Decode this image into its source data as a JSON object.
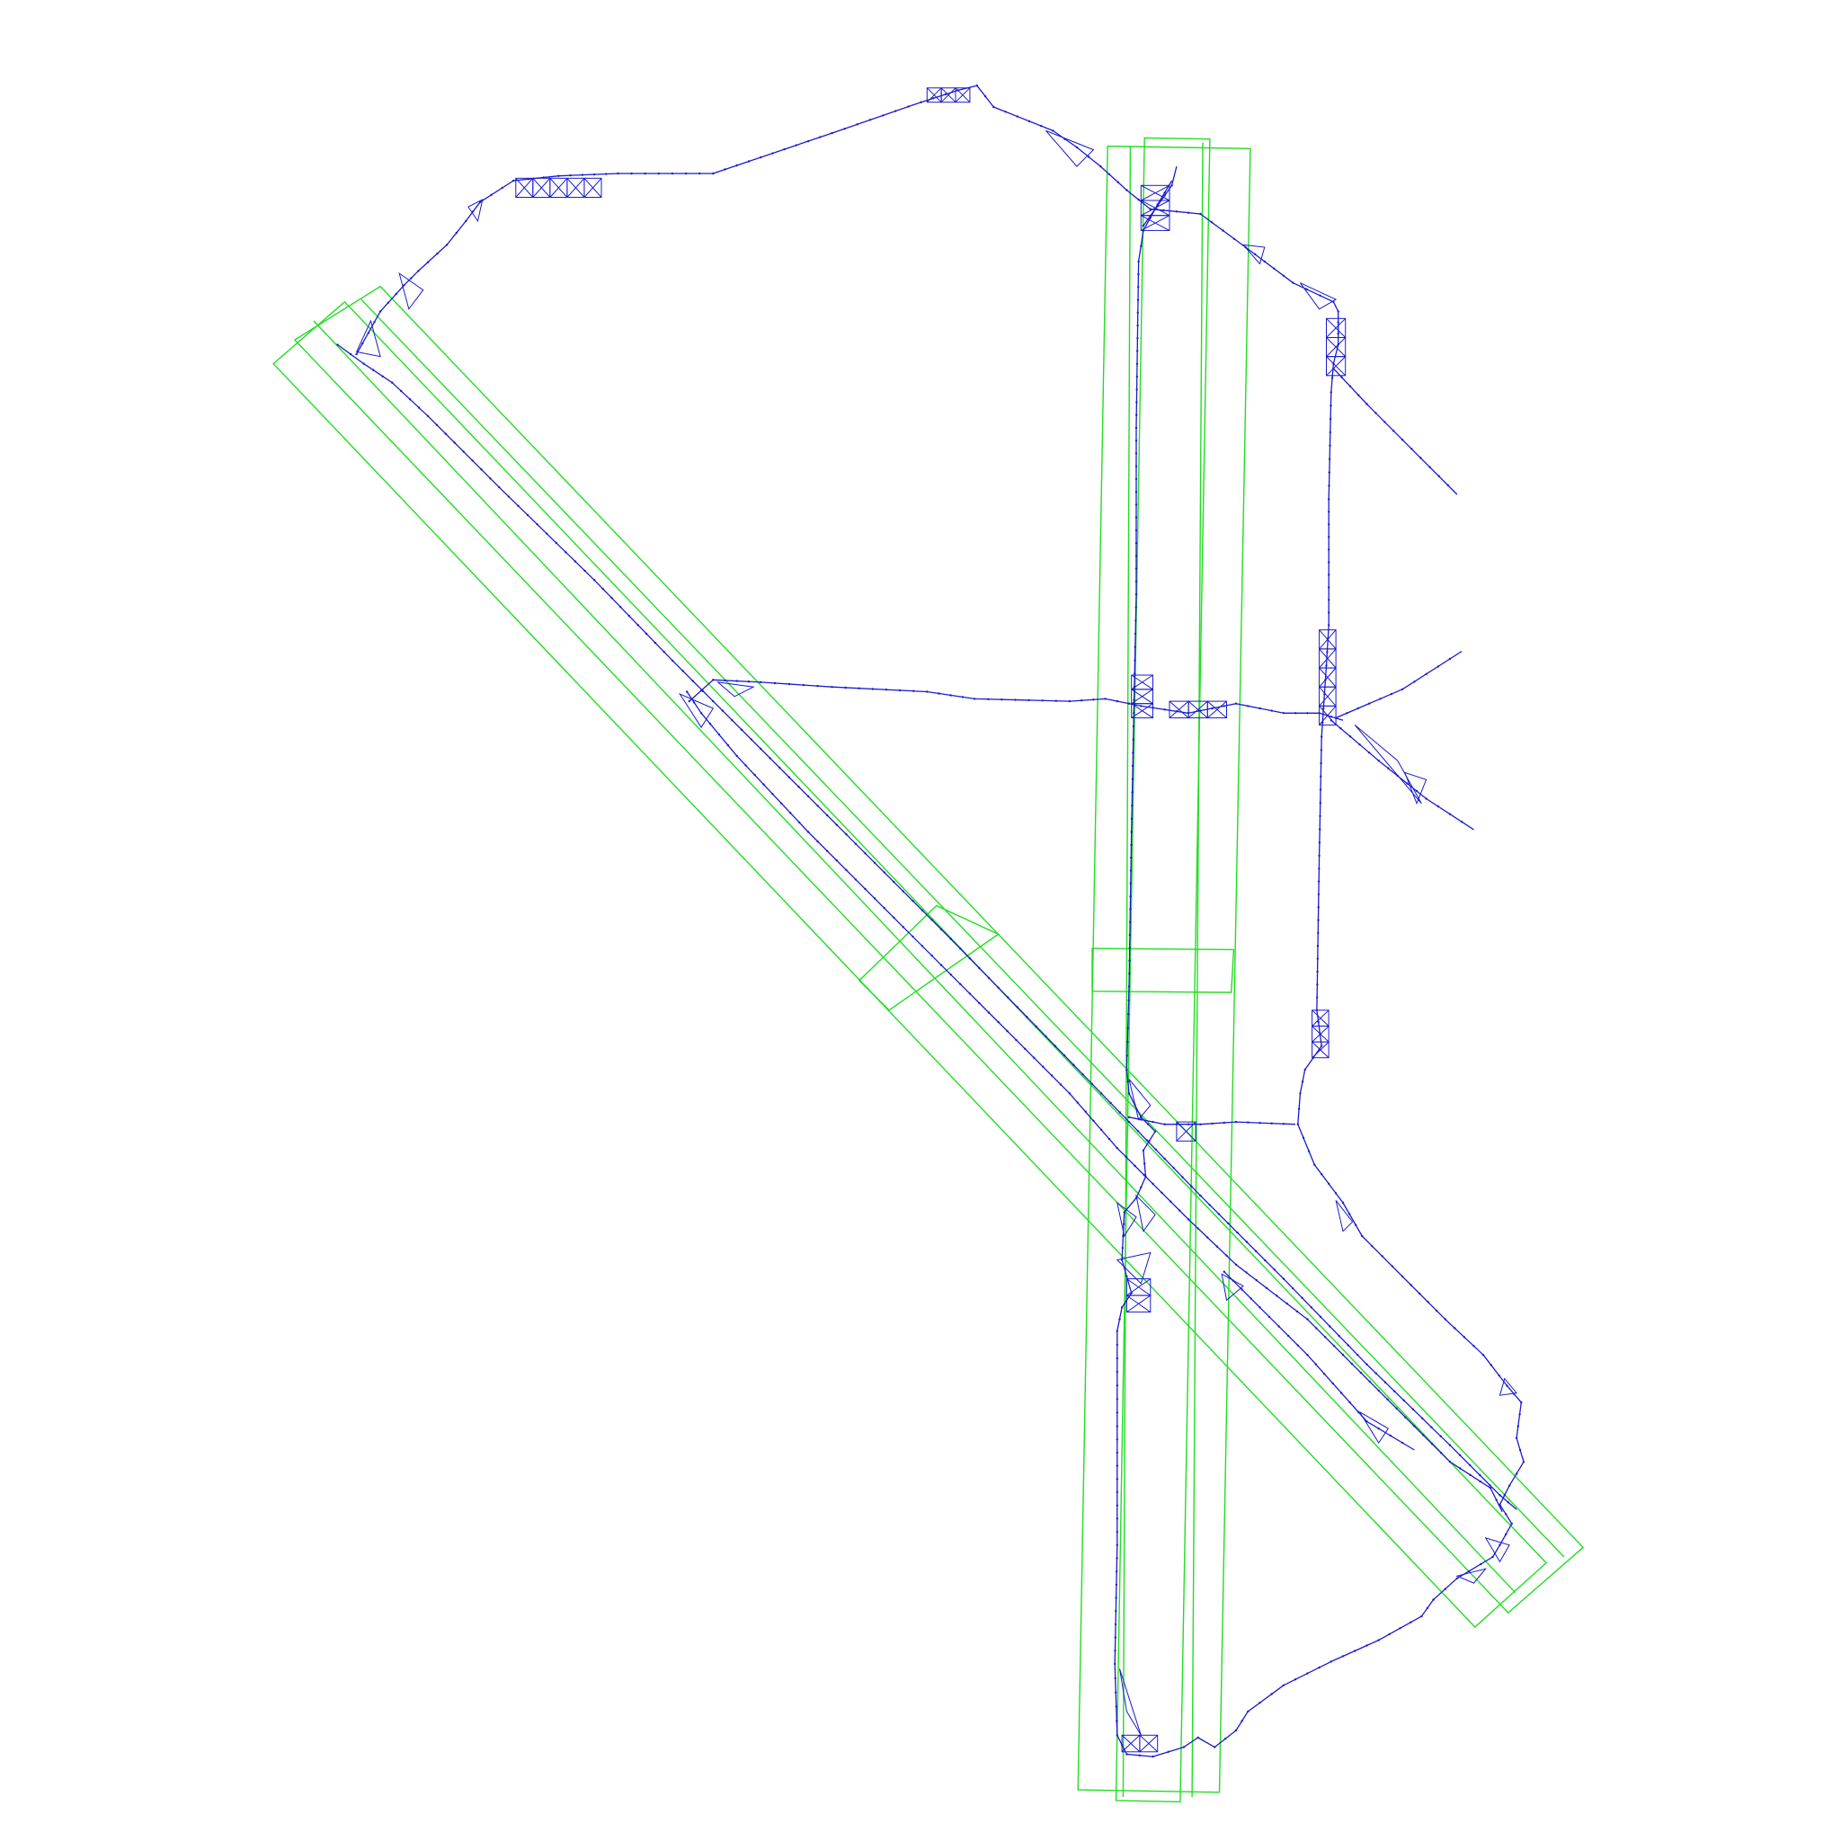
{
  "colors": {
    "background": "#ffffff",
    "runway_outline": "#22dd22",
    "taxiway_network": "#1a1acc"
  }
}
